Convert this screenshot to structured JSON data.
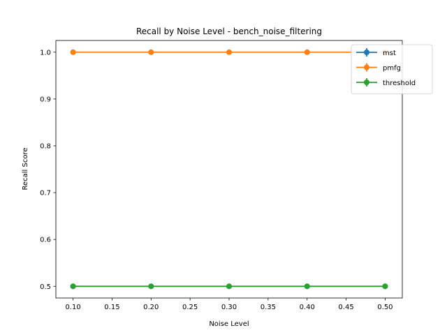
{
  "chart_data": {
    "type": "line",
    "title": "Recall by Noise Level - bench_noise_filtering",
    "xlabel": "Noise Level",
    "ylabel": "Recall Score",
    "x": [
      0.1,
      0.2,
      0.3,
      0.4,
      0.5
    ],
    "xlim": [
      0.078,
      0.522
    ],
    "ylim": [
      0.475,
      1.025
    ],
    "xticks": [
      "0.10",
      "0.15",
      "0.20",
      "0.25",
      "0.30",
      "0.35",
      "0.40",
      "0.45",
      "0.50"
    ],
    "yticks": [
      "0.5",
      "0.6",
      "0.7",
      "0.8",
      "0.9",
      "1.0"
    ],
    "grid": false,
    "legend_position": "upper-right",
    "series": [
      {
        "name": "mst",
        "color": "#1f77b4",
        "values": [
          0.5,
          0.5,
          0.5,
          0.5,
          0.5
        ]
      },
      {
        "name": "pmfg",
        "color": "#ff7f0e",
        "values": [
          1.0,
          1.0,
          1.0,
          1.0,
          1.0
        ]
      },
      {
        "name": "threshold",
        "color": "#2ca02c",
        "values": [
          0.5,
          0.5,
          0.5,
          0.5,
          0.5
        ]
      }
    ]
  }
}
